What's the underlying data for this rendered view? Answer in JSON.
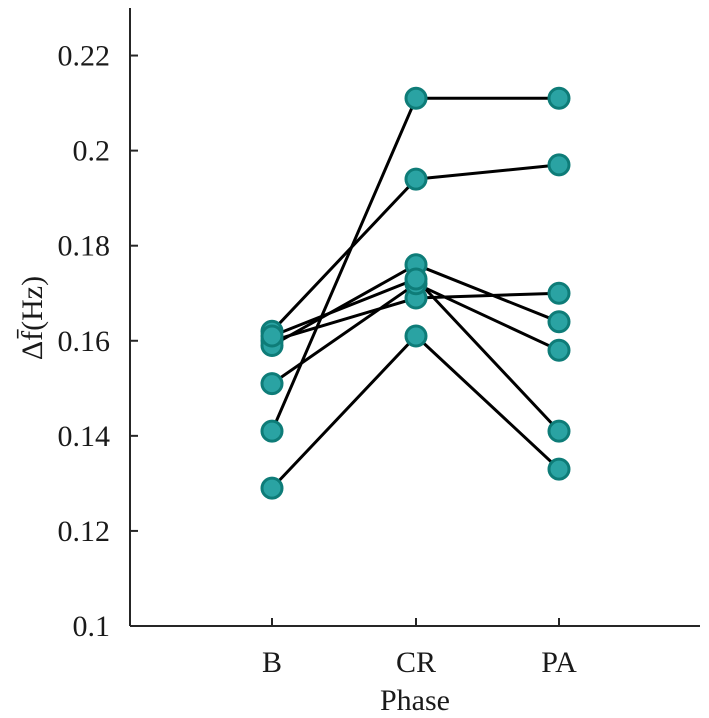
{
  "chart_data": {
    "type": "line",
    "title": "",
    "xlabel": "Phase",
    "ylabel": "Δf̄(Hz)",
    "categories": [
      "B",
      "CR",
      "PA"
    ],
    "ylim": [
      0.1,
      0.23
    ],
    "yticks": [
      "0.1",
      "0.12",
      "0.14",
      "0.16",
      "0.18",
      "0.2",
      "0.22"
    ],
    "grid": false,
    "marker_fill": "#2aa3a3",
    "marker_edge": "#0e7c78",
    "line_color": "#000000",
    "series": [
      {
        "values": [
          0.141,
          0.211,
          0.211
        ]
      },
      {
        "values": [
          0.162,
          0.194,
          0.197
        ]
      },
      {
        "values": [
          0.16,
          0.169,
          0.17
        ]
      },
      {
        "values": [
          0.159,
          0.176,
          0.164
        ]
      },
      {
        "values": [
          0.151,
          0.172,
          0.158
        ]
      },
      {
        "values": [
          0.161,
          0.173,
          0.141
        ]
      },
      {
        "values": [
          0.129,
          0.161,
          0.133
        ]
      }
    ]
  }
}
